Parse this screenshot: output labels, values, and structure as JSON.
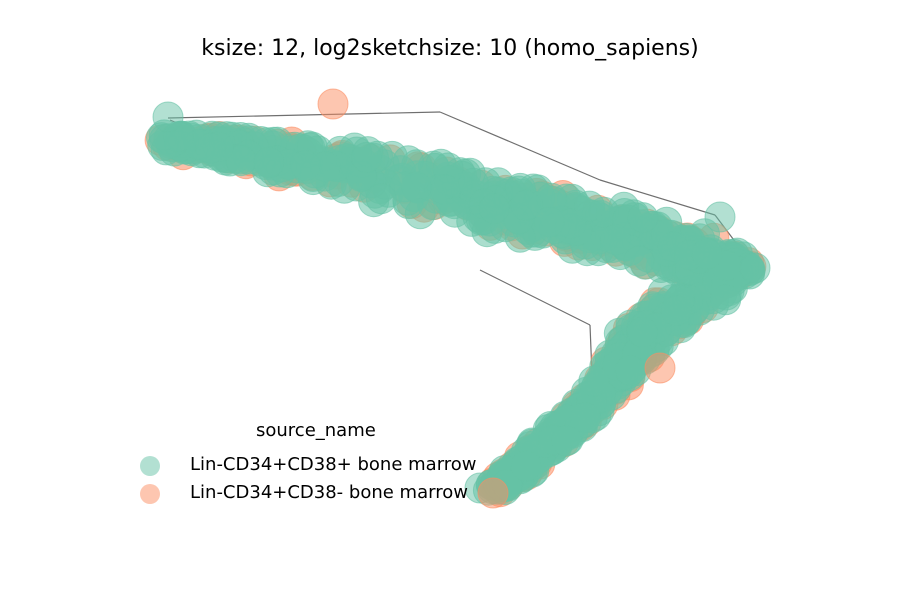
{
  "chart_data": {
    "type": "scatter",
    "title": "ksize: 12, log2sketchsize: 10 (homo_sapiens)",
    "legend": {
      "title": "source_name",
      "placement": "lower-left"
    },
    "series": [
      {
        "name": "Lin-CD34+CD38+ bone marrow",
        "color": "#66c2a5"
      },
      {
        "name": "Lin-CD34+CD38- bone marrow",
        "color": "#fc8d62"
      }
    ],
    "axes_visible": false,
    "grid": false
  }
}
